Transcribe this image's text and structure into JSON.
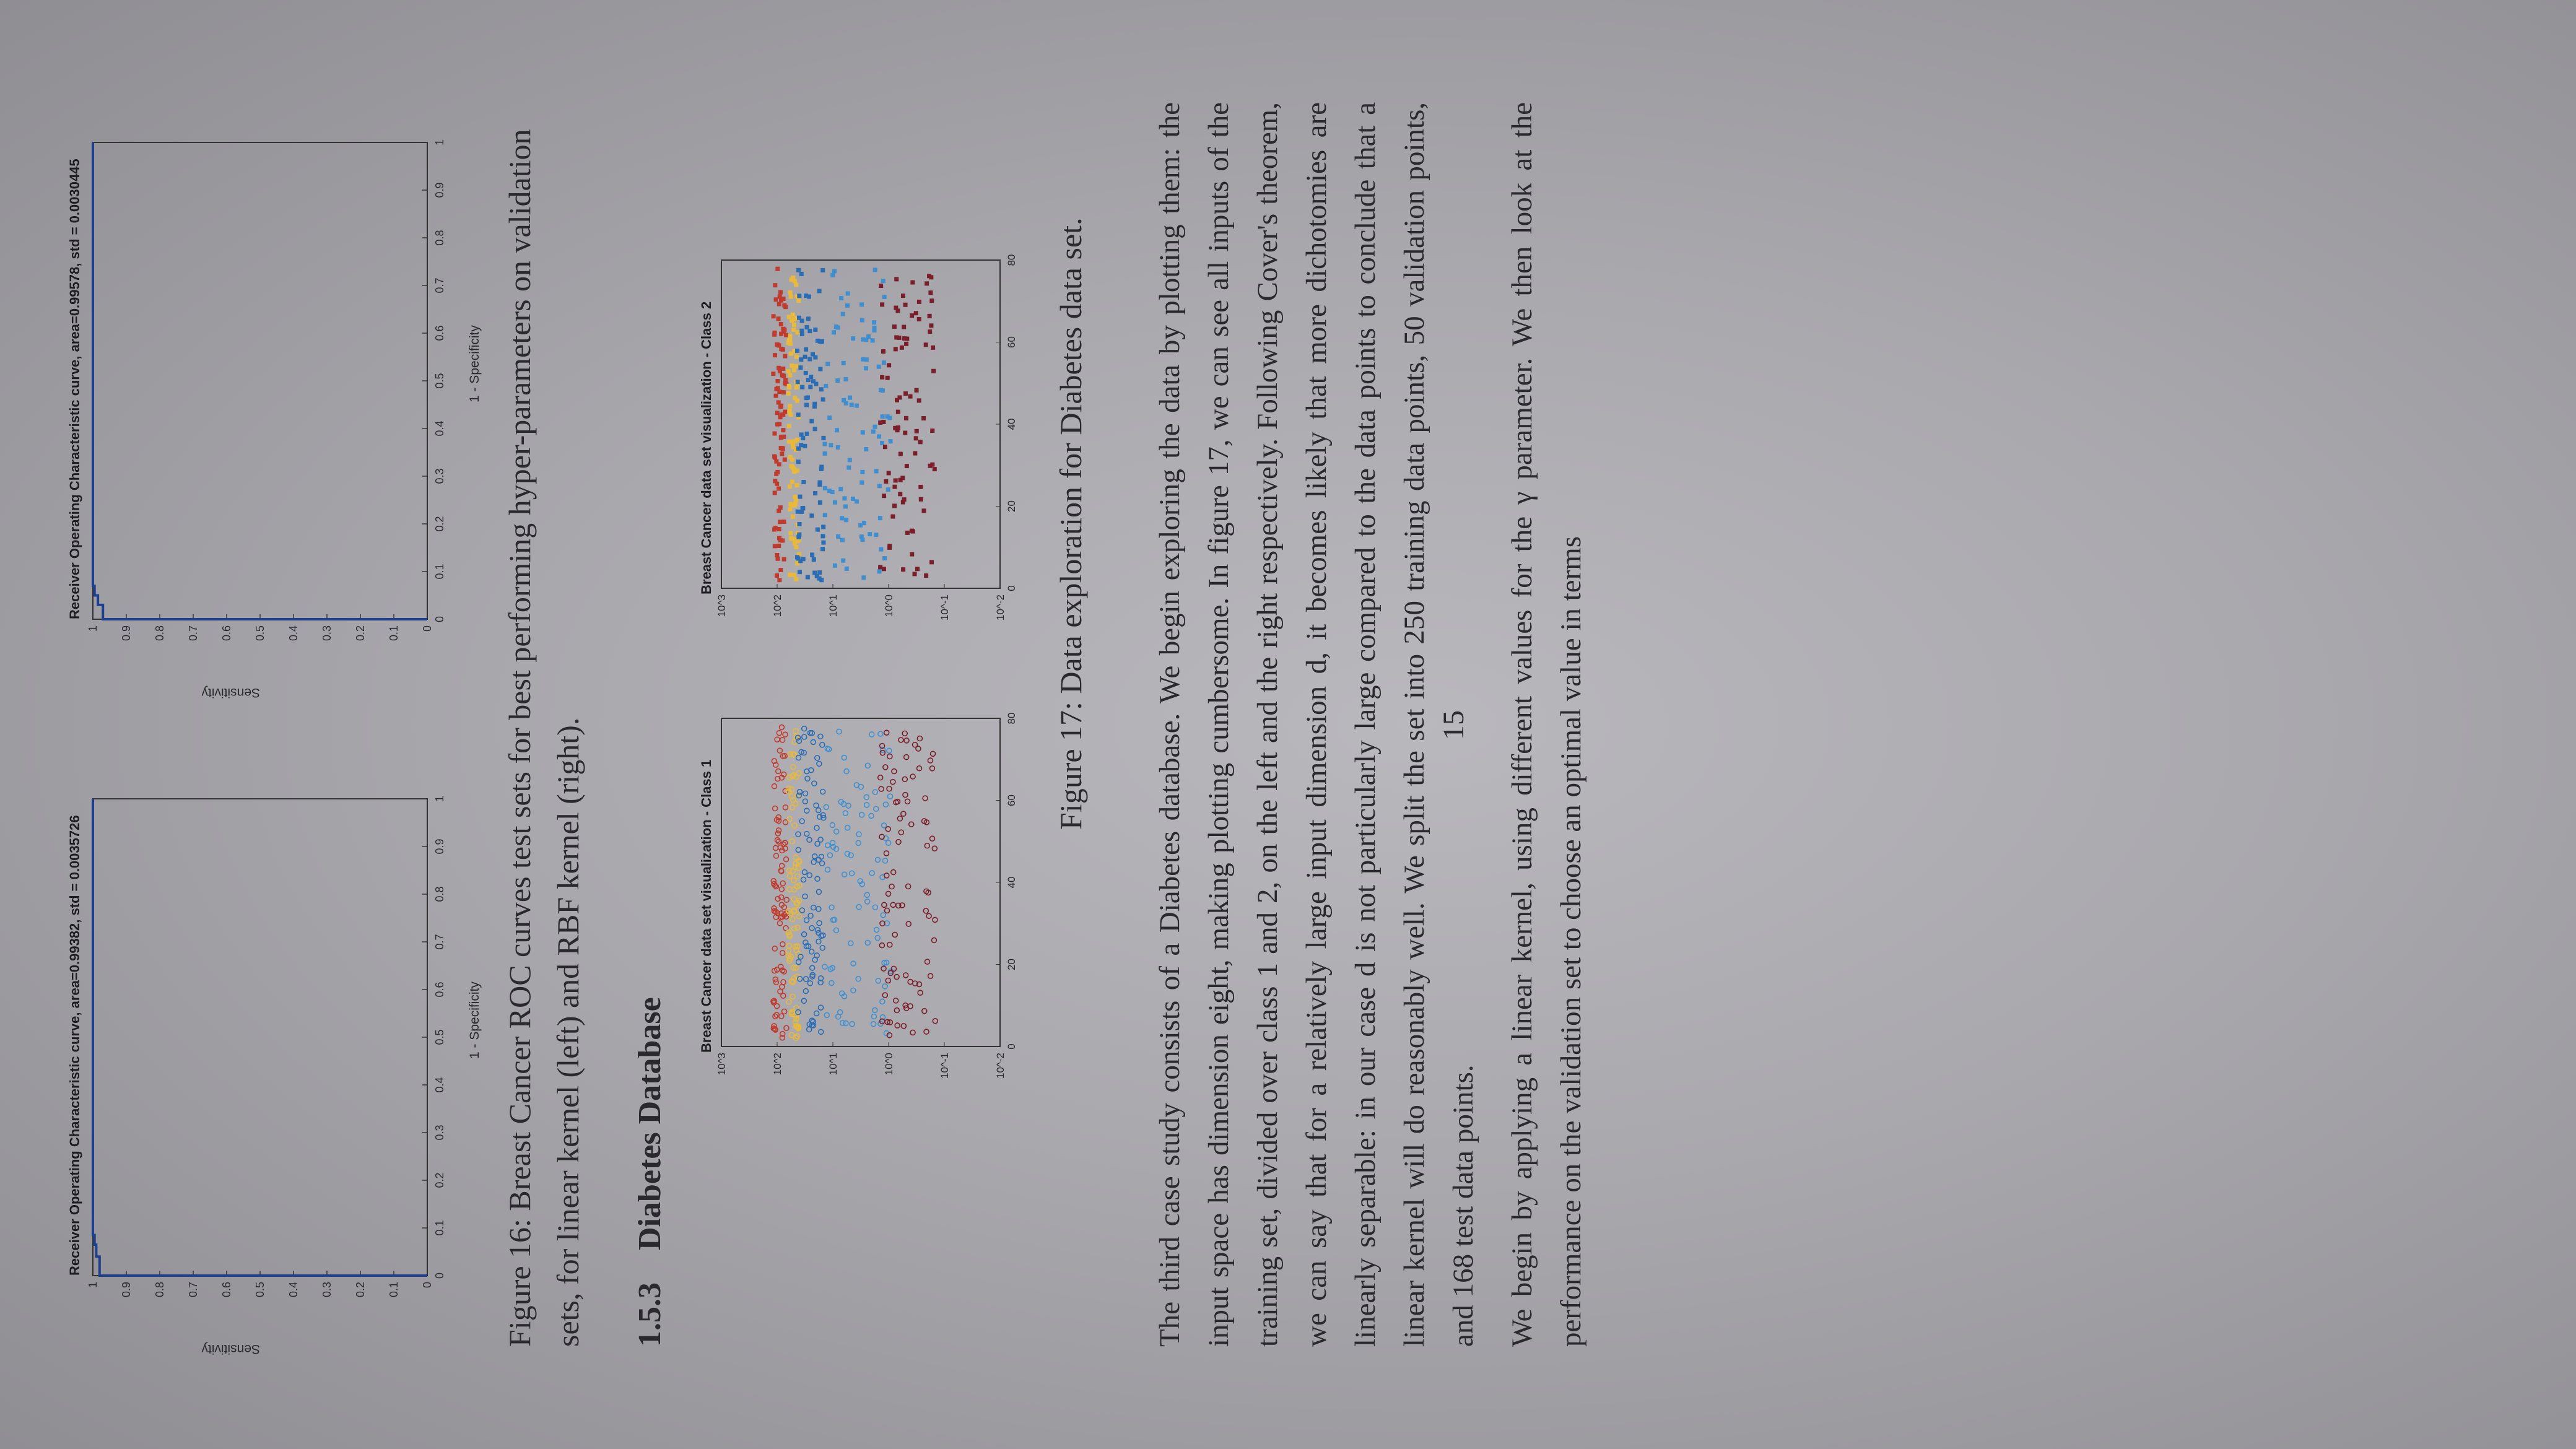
{
  "roc_left": {
    "title": "Receiver Operating Characteristic curve, area=0.99382, std = 0.0035726",
    "xlabel": "1 - Specificity",
    "ylabel": "Sensitivity"
  },
  "roc_right": {
    "title": "Receiver Operating Characteristic curve, area=0.99578, std = 0.0030445",
    "xlabel": "1 - Specificity",
    "ylabel": "Sensitivity"
  },
  "figure16_caption": "Figure 16: Breast Cancer ROC curves test sets for best performing hyper-parameters on validation sets, for linear kernel (left) and RBF kernel (right).",
  "section": {
    "number": "1.5.3",
    "title": "Diabetes Database"
  },
  "scatter_left": {
    "title": "Breast Cancer data set visualization - Class 1"
  },
  "scatter_right": {
    "title": "Breast Cancer data set visualization - Class 2"
  },
  "figure17_caption": "Figure 17: Data exploration for Diabetes data set.",
  "paragraph1": "The third case study consists of a Diabetes database. We begin exploring the data by plotting them: the input space has dimension eight, making plotting cumbersome. In figure 17, we can see all inputs of the training set, divided over class 1 and 2, on the left and the right respectively. Following Cover's theorem, we can say that for a relatively large input dimension d, it becomes likely that more dichotomies are linearly separable: in our case d is not particularly large compared to the data points to conclude that a linear kernel will do reasonably well. We split the set into 250 training data points, 50 validation points, and 168 test data points.",
  "paragraph2": "We begin by applying a linear kernel, using different values for the γ parameter. We then look at the performance on the validation set to choose an optimal value in terms",
  "page_number": "15",
  "chart_data": [
    {
      "type": "line",
      "title": "Receiver Operating Characteristic curve, area=0.99382, std = 0.0035726",
      "xlabel": "1 - Specificity",
      "ylabel": "Sensitivity",
      "xlim": [
        0,
        1
      ],
      "ylim": [
        0,
        1
      ],
      "x_ticks": [
        "0",
        "0.1",
        "0.2",
        "0.3",
        "0.4",
        "0.5",
        "0.6",
        "0.7",
        "0.8",
        "0.9",
        "1"
      ],
      "y_ticks": [
        "0",
        "0.1",
        "0.2",
        "0.3",
        "0.4",
        "0.5",
        "0.6",
        "0.7",
        "0.8",
        "0.9",
        "1"
      ],
      "color": "#1f3f8f",
      "x": [
        0,
        0,
        0.04,
        0.04,
        0.065,
        0.065,
        0.085,
        0.085,
        1
      ],
      "y": [
        0,
        0.98,
        0.98,
        0.99,
        0.99,
        0.995,
        0.995,
        1,
        1
      ]
    },
    {
      "type": "line",
      "title": "Receiver Operating Characteristic curve, area=0.99578, std = 0.0030445",
      "xlabel": "1 - Specificity",
      "ylabel": "Sensitivity",
      "xlim": [
        0,
        1
      ],
      "ylim": [
        0,
        1
      ],
      "x_ticks": [
        "0",
        "0.1",
        "0.2",
        "0.3",
        "0.4",
        "0.5",
        "0.6",
        "0.7",
        "0.8",
        "0.9",
        "1"
      ],
      "y_ticks": [
        "0",
        "0.1",
        "0.2",
        "0.3",
        "0.4",
        "0.5",
        "0.6",
        "0.7",
        "0.8",
        "0.9",
        "1"
      ],
      "color": "#1f3f8f",
      "x": [
        0,
        0,
        0.03,
        0.03,
        0.05,
        0.05,
        0.07,
        0.07,
        1
      ],
      "y": [
        0,
        0.97,
        0.97,
        0.985,
        0.985,
        0.995,
        0.995,
        1,
        1
      ]
    },
    {
      "type": "scatter",
      "title": "Breast Cancer data set visualization - Class 1",
      "marker": "circle",
      "log_y": true,
      "xlim": [
        0,
        80
      ],
      "x_ticks": [
        "0",
        "20",
        "40",
        "60",
        "80"
      ],
      "y_ticks": [
        "10^-2",
        "10^-1",
        "10^0",
        "10^1",
        "10^2",
        "10^3"
      ],
      "series": [
        {
          "color": "#c03a2e",
          "y_center": 1.95,
          "y_spread": 0.06
        },
        {
          "color": "#e8b93a",
          "y_center": 1.7,
          "y_spread": 0.05
        },
        {
          "color": "#2a6db5",
          "y_center": 1.4,
          "y_spread": 0.12
        },
        {
          "color": "#3f8fd0",
          "y_center": 0.55,
          "y_spread": 0.3
        },
        {
          "color": "#7a1f2a",
          "y_center": -0.35,
          "y_spread": 0.25
        }
      ]
    },
    {
      "type": "scatter",
      "title": "Breast Cancer data set visualization - Class 2",
      "marker": "square",
      "log_y": true,
      "xlim": [
        0,
        80
      ],
      "x_ticks": [
        "0",
        "20",
        "40",
        "60",
        "80"
      ],
      "y_ticks": [
        "10^-2",
        "10^-1",
        "10^0",
        "10^1",
        "10^2",
        "10^3"
      ],
      "series": [
        {
          "color": "#c03a2e",
          "y_center": 1.95,
          "y_spread": 0.06
        },
        {
          "color": "#e8b93a",
          "y_center": 1.7,
          "y_spread": 0.05
        },
        {
          "color": "#2a6db5",
          "y_center": 1.4,
          "y_spread": 0.12
        },
        {
          "color": "#3f8fd0",
          "y_center": 0.55,
          "y_spread": 0.3
        },
        {
          "color": "#7a1f2a",
          "y_center": -0.35,
          "y_spread": 0.25
        }
      ]
    }
  ]
}
